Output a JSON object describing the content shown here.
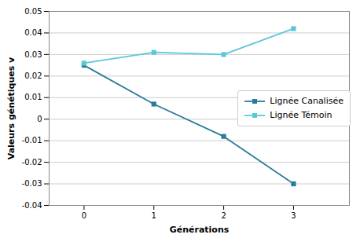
{
  "chart_data": {
    "type": "line",
    "xlabel": "Générations",
    "ylabel": "Valeurs génétiques v",
    "x": [
      0,
      1,
      2,
      3
    ],
    "series": [
      {
        "name": "Lignée Canalisée",
        "color": "#2B7B9B",
        "values": [
          0.025,
          0.007,
          -0.008,
          -0.03
        ]
      },
      {
        "name": "Lignée Témoin",
        "color": "#5BC8D8",
        "values": [
          0.026,
          0.031,
          0.03,
          0.042
        ]
      }
    ],
    "marker": "square",
    "xlim": [
      -0.5,
      3.8
    ],
    "xticks": [
      0,
      1,
      2,
      3
    ],
    "ylim": [
      -0.04,
      0.05
    ],
    "yticks": [
      -0.04,
      -0.03,
      -0.02,
      -0.01,
      0,
      0.01,
      0.02,
      0.03,
      0.04,
      0.05
    ],
    "grid": true,
    "legend": "right"
  }
}
